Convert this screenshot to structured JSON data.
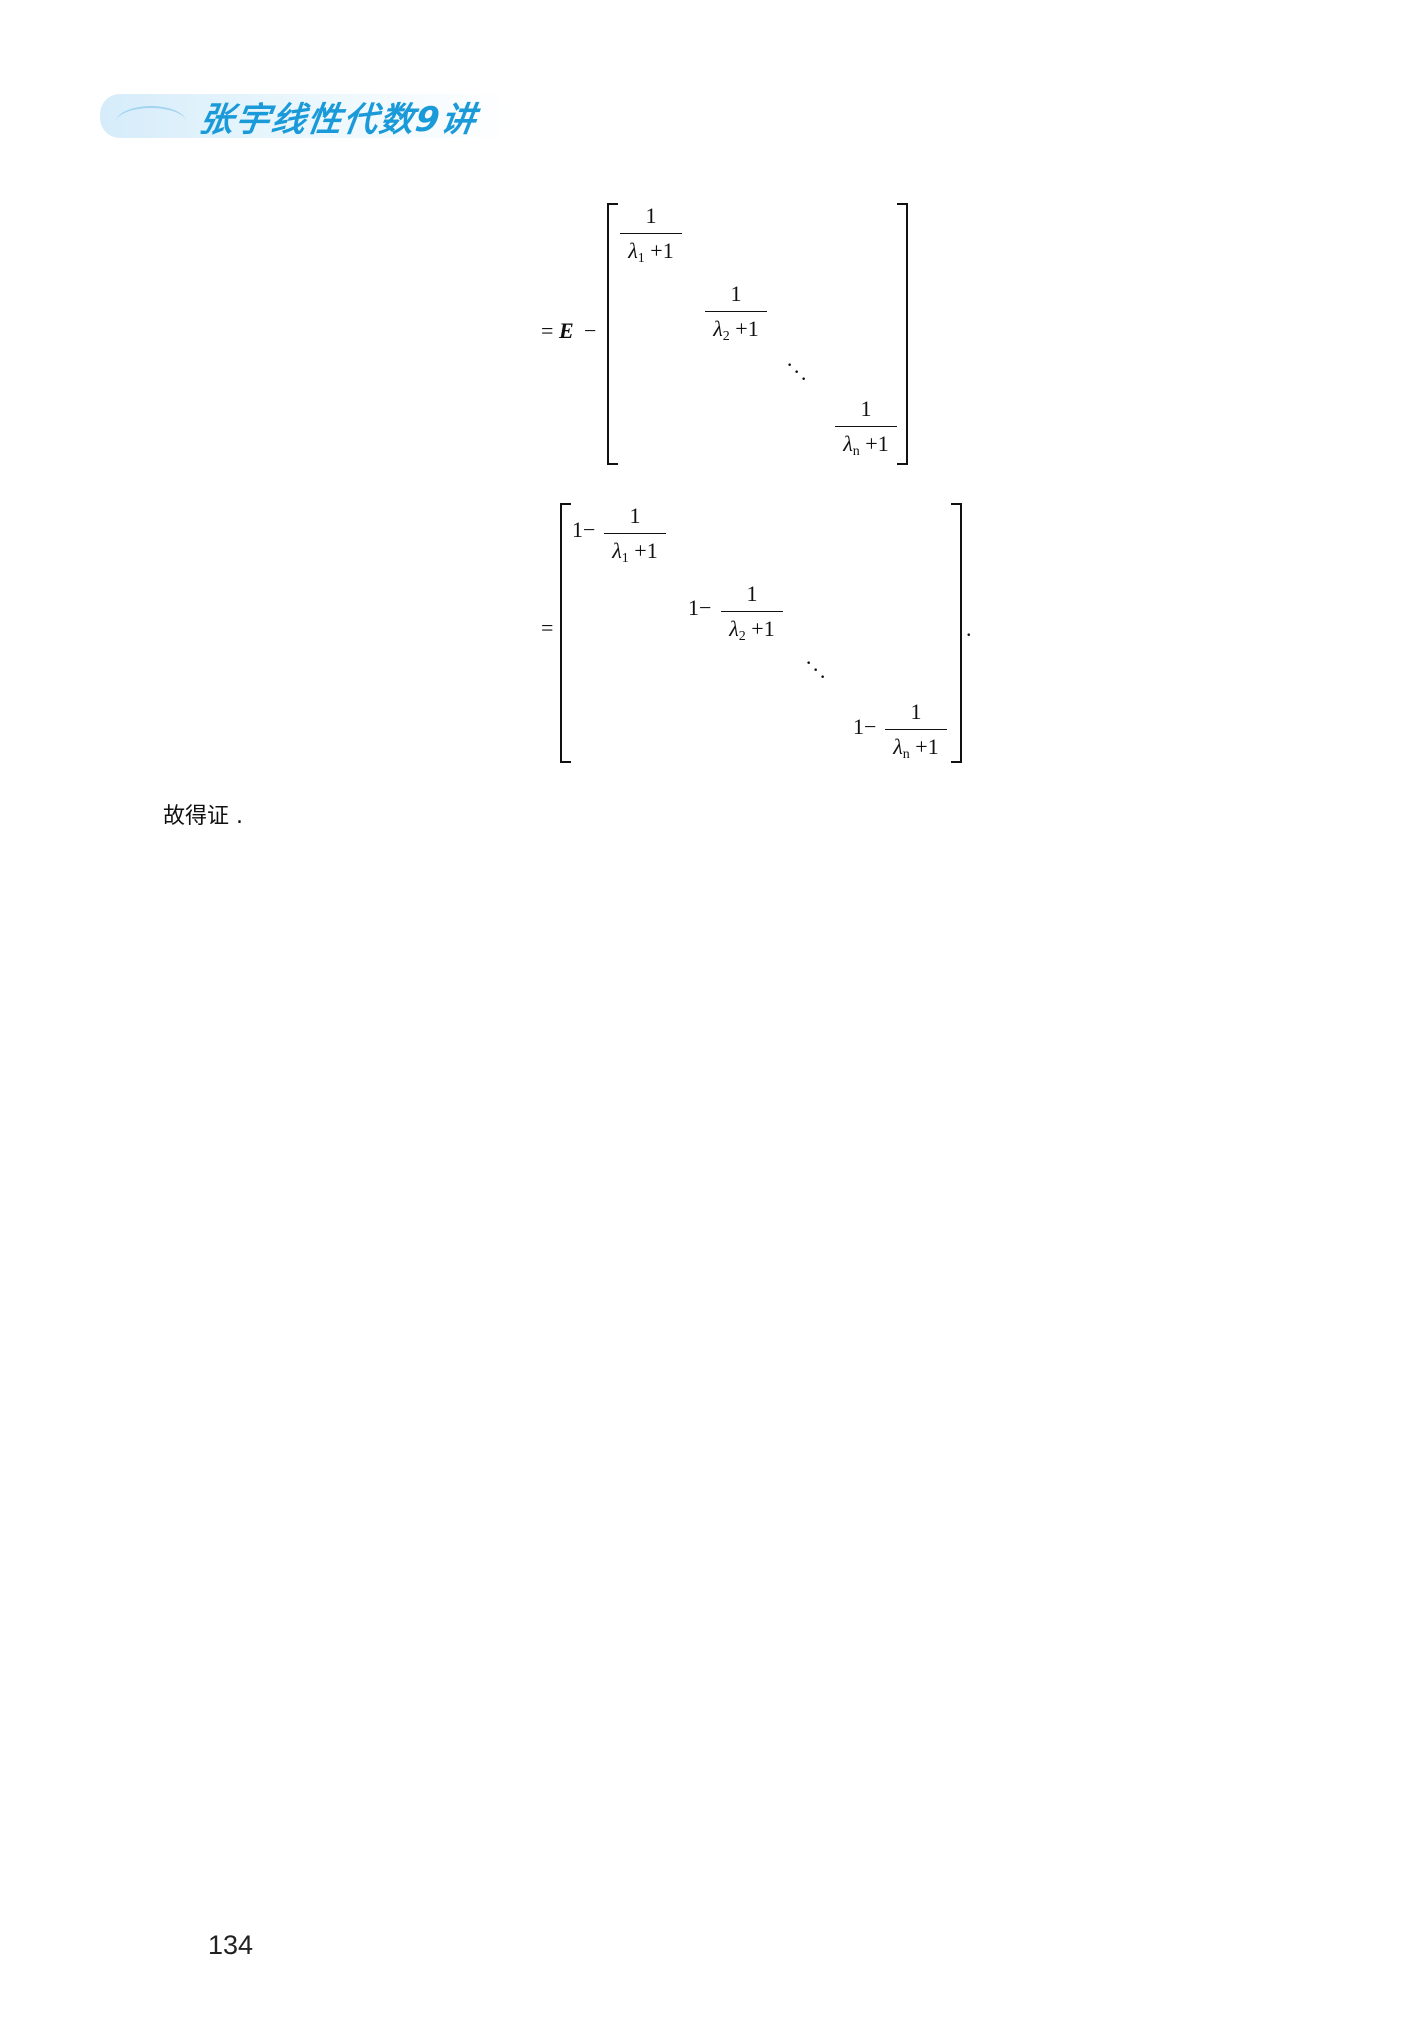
{
  "header": {
    "title": "张宇线性代数9讲"
  },
  "equation1": {
    "prefix_equals": "=",
    "prefix_E": "E",
    "prefix_minus": "−",
    "numerator": "1",
    "den_lambda": "λ",
    "den_plus": " +1",
    "sub_1": "1",
    "sub_2": "2",
    "sub_n": "n"
  },
  "equation2": {
    "equals": "=",
    "one_minus": "1−",
    "trailing_period": "."
  },
  "body_text": "故得证 .",
  "page_number": "134"
}
